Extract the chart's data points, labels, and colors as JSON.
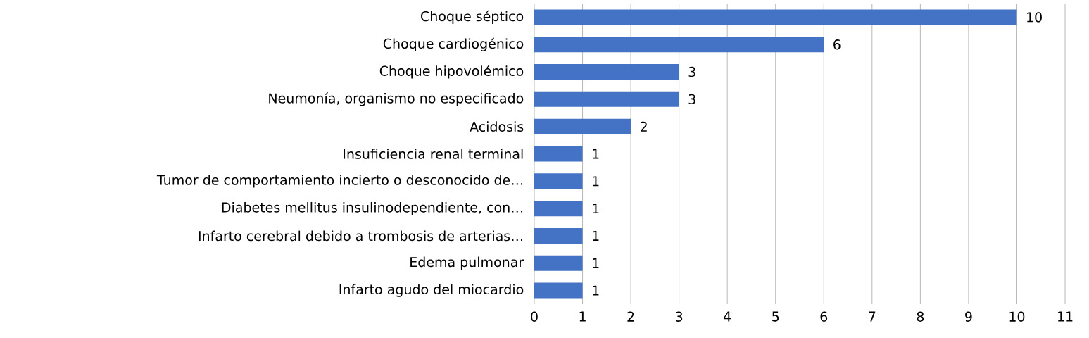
{
  "chart_data": {
    "type": "bar",
    "orientation": "horizontal",
    "categories": [
      "Choque séptico",
      "Choque cardiogénico",
      "Choque hipovolémico",
      "Neumonía, organismo no especificado",
      "Acidosis",
      "Insuficiencia renal terminal",
      "Tumor de comportamiento incierto o desconocido de…",
      "Diabetes mellitus insulinodependiente, con…",
      "Infarto cerebral debido a trombosis de arterias…",
      "Edema pulmonar",
      "Infarto agudo del miocardio"
    ],
    "values": [
      10,
      6,
      3,
      3,
      2,
      1,
      1,
      1,
      1,
      1,
      1
    ],
    "color": "#4472c4",
    "xlim": [
      0,
      11
    ],
    "xticks": [
      0,
      1,
      2,
      3,
      4,
      5,
      6,
      7,
      8,
      9,
      10,
      11
    ],
    "grid": "x",
    "data_labels": true
  }
}
